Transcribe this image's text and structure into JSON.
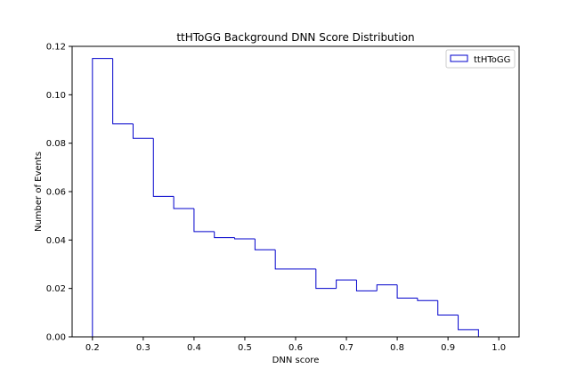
{
  "chart_data": {
    "type": "histogram",
    "title": "ttHToGG Background DNN Score Distribution",
    "xlabel": "DNN score",
    "ylabel": "Number of Events",
    "xlim": [
      0.16,
      1.04
    ],
    "ylim": [
      0.0,
      0.12
    ],
    "xticks": [
      "0.2",
      "0.3",
      "0.4",
      "0.5",
      "0.6",
      "0.7",
      "0.8",
      "0.9",
      "1.0"
    ],
    "yticks": [
      "0.00",
      "0.02",
      "0.04",
      "0.06",
      "0.08",
      "0.10",
      "0.12"
    ],
    "legend_position": "top-right",
    "series": [
      {
        "name": "ttHToGG",
        "color": "#0000cc",
        "bin_edges": [
          0.2,
          0.24,
          0.28,
          0.32,
          0.36,
          0.4,
          0.44,
          0.48,
          0.52,
          0.56,
          0.6,
          0.64,
          0.68,
          0.72,
          0.76,
          0.8,
          0.84,
          0.88,
          0.92,
          0.96
        ],
        "values": [
          0.115,
          0.088,
          0.082,
          0.058,
          0.053,
          0.0435,
          0.041,
          0.0405,
          0.036,
          0.028,
          0.028,
          0.02,
          0.0235,
          0.019,
          0.0215,
          0.016,
          0.015,
          0.009,
          0.003
        ]
      }
    ]
  }
}
